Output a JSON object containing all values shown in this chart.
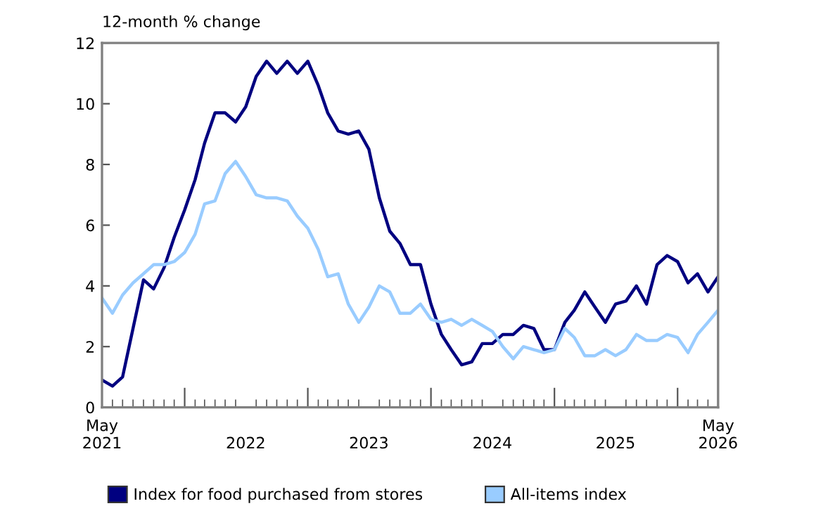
{
  "chart_data": {
    "type": "line",
    "ylabel": "12-month % change",
    "x": [
      "2021-05",
      "2021-06",
      "2021-07",
      "2021-08",
      "2021-09",
      "2021-10",
      "2021-11",
      "2021-12",
      "2022-01",
      "2022-02",
      "2022-03",
      "2022-04",
      "2022-05",
      "2022-06",
      "2022-07",
      "2022-08",
      "2022-09",
      "2022-10",
      "2022-11",
      "2022-12",
      "2023-01",
      "2023-02",
      "2023-03",
      "2023-04",
      "2023-05",
      "2023-06",
      "2023-07",
      "2023-08",
      "2023-09",
      "2023-10",
      "2023-11",
      "2023-12",
      "2024-01",
      "2024-02",
      "2024-03",
      "2024-04",
      "2024-05",
      "2024-06",
      "2024-07",
      "2024-08",
      "2024-09",
      "2024-10",
      "2024-11",
      "2024-12",
      "2025-01",
      "2025-02",
      "2025-03",
      "2025-04",
      "2025-05",
      "2025-06",
      "2025-07",
      "2025-08",
      "2025-09",
      "2025-10",
      "2025-11",
      "2025-12",
      "2026-01",
      "2026-02",
      "2026-03",
      "2026-04",
      "2026-05"
    ],
    "series": [
      {
        "name": "Index for food purchased from stores",
        "color": "#000080",
        "values": [
          0.9,
          0.7,
          1.0,
          2.6,
          4.2,
          3.9,
          4.6,
          5.6,
          6.5,
          7.5,
          8.7,
          9.7,
          9.7,
          9.4,
          9.9,
          10.9,
          11.4,
          11.0,
          11.4,
          11.0,
          11.4,
          10.6,
          9.7,
          9.1,
          9.0,
          9.1,
          8.5,
          6.9,
          5.8,
          5.4,
          4.7,
          4.7,
          3.4,
          2.4,
          1.9,
          1.4,
          1.5,
          2.1,
          2.1,
          2.4,
          2.4,
          2.7,
          2.6,
          1.9,
          1.9,
          2.8,
          3.2,
          3.8,
          3.3,
          2.8,
          3.4,
          3.5,
          4.0,
          3.4,
          4.7,
          5.0,
          4.8,
          4.1,
          4.4,
          3.8,
          4.3
        ]
      },
      {
        "name": "All-items index",
        "color": "#99ccff",
        "values": [
          3.6,
          3.1,
          3.7,
          4.1,
          4.4,
          4.7,
          4.7,
          4.8,
          5.1,
          5.7,
          6.7,
          6.8,
          7.7,
          8.1,
          7.6,
          7.0,
          6.9,
          6.9,
          6.8,
          6.3,
          5.9,
          5.2,
          4.3,
          4.4,
          3.4,
          2.8,
          3.3,
          4.0,
          3.8,
          3.1,
          3.1,
          3.4,
          2.9,
          2.8,
          2.9,
          2.7,
          2.9,
          2.7,
          2.5,
          2.0,
          1.6,
          2.0,
          1.9,
          1.8,
          1.9,
          2.6,
          2.3,
          1.7,
          1.7,
          1.9,
          1.7,
          1.9,
          2.4,
          2.2,
          2.2,
          2.4,
          2.3,
          1.8,
          2.4,
          2.8,
          3.2
        ]
      }
    ],
    "xlim": [
      "2021-05",
      "2026-05"
    ],
    "xticks": [
      {
        "value": "2021-05",
        "label": "May\n2021"
      },
      {
        "value": "2022-01",
        "label": null
      },
      {
        "value": "2022-07",
        "label": "\n2022"
      },
      {
        "value": "2023-01",
        "label": null
      },
      {
        "value": "2023-07",
        "label": "\n2023"
      },
      {
        "value": "2024-01",
        "label": null
      },
      {
        "value": "2024-07",
        "label": "\n2024"
      },
      {
        "value": "2025-01",
        "label": null
      },
      {
        "value": "2025-07",
        "label": "\n2025"
      },
      {
        "value": "2026-01",
        "label": null
      },
      {
        "value": "2026-05",
        "label": "May\n2026"
      }
    ],
    "ylim": [
      0,
      12
    ],
    "yticks": [
      0,
      2,
      4,
      6,
      8,
      10,
      12
    ],
    "grid": false,
    "legend": "bottom",
    "marker": "none",
    "line_style": "solid"
  }
}
